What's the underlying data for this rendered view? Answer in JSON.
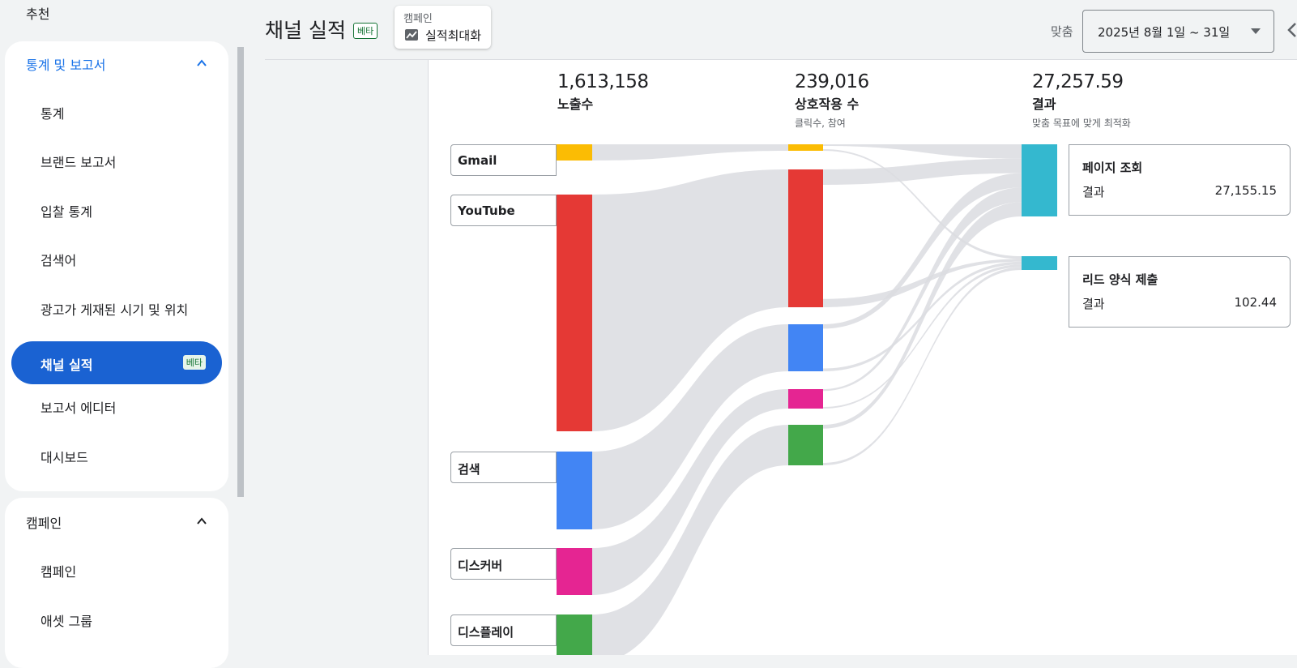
{
  "sidebar": {
    "top_item": "추천",
    "section1": {
      "title": "통계 및 보고서",
      "items": [
        "통계",
        "브랜드 보고서",
        "입찰 통계",
        "검색어",
        "광고가 게재된 시기 및 위치"
      ],
      "active_item": "채널 실적",
      "active_badge": "베타",
      "items_after": [
        "보고서 에디터",
        "대시보드"
      ]
    },
    "section2": {
      "title": "캠페인",
      "items": [
        "캠페인",
        "애셋 그룹"
      ]
    }
  },
  "header": {
    "title": "채널 실적",
    "badge": "베타",
    "chip_key": "캠페인",
    "chip_value": "실적최대화",
    "custom_label": "맞춤",
    "date_range": "2025년 8월 1일 ~ 31일"
  },
  "chart_data": {
    "type": "sankey",
    "columns": [
      {
        "value": "1,613,158",
        "label": "노출수",
        "sub": ""
      },
      {
        "value": "239,016",
        "label": "상호작용 수",
        "sub": "클릭수, 참여"
      },
      {
        "value": "27,257.59",
        "label": "결과",
        "sub": "맞춤 목표에 맞게 최적화"
      }
    ],
    "sources": [
      {
        "name": "Gmail",
        "color": "#fbbc04"
      },
      {
        "name": "YouTube",
        "color": "#e53935"
      },
      {
        "name": "검색",
        "color": "#4285f4"
      },
      {
        "name": "디스커버",
        "color": "#e52592"
      },
      {
        "name": "디스플레이",
        "color": "#43a84a"
      }
    ],
    "results": [
      {
        "name": "페이지 조회",
        "key": "결과",
        "value": "27,155.15",
        "color": "#34b8cf"
      },
      {
        "name": "리드 양식 제출",
        "key": "결과",
        "value": "102.44",
        "color": "#34b8cf"
      }
    ]
  }
}
